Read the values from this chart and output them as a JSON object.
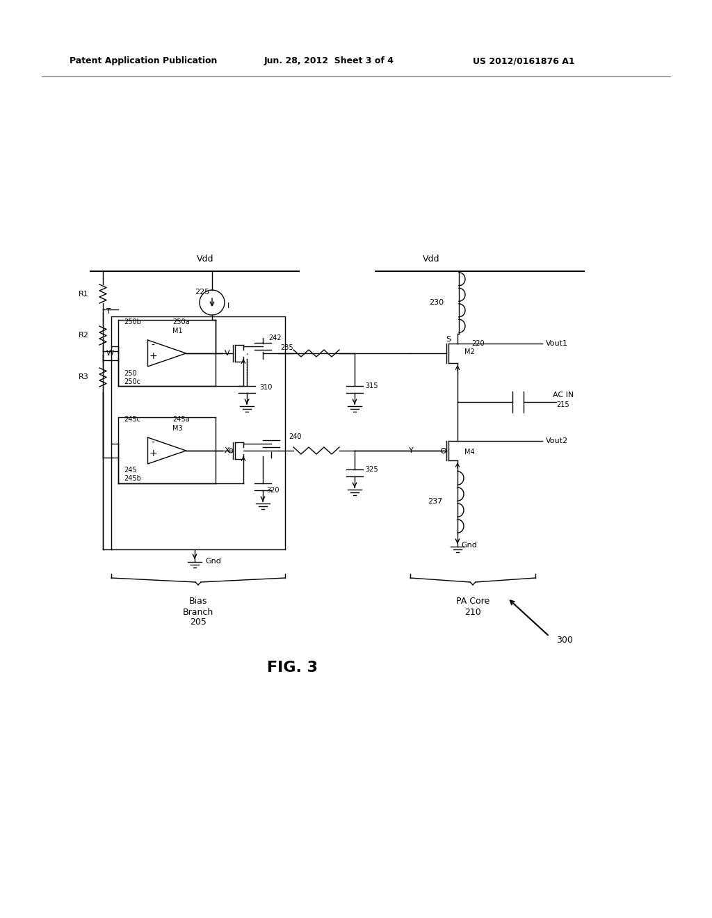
{
  "page_header_left": "Patent Application Publication",
  "page_header_center": "Jun. 28, 2012  Sheet 3 of 4",
  "page_header_right": "US 2012/0161876 A1",
  "figure_label": "FIG. 3",
  "bg_color": "#ffffff",
  "line_color": "#000000",
  "text_color": "#000000",
  "header_font_size": 9,
  "label_font_size": 8,
  "fig_label_font_size": 16
}
